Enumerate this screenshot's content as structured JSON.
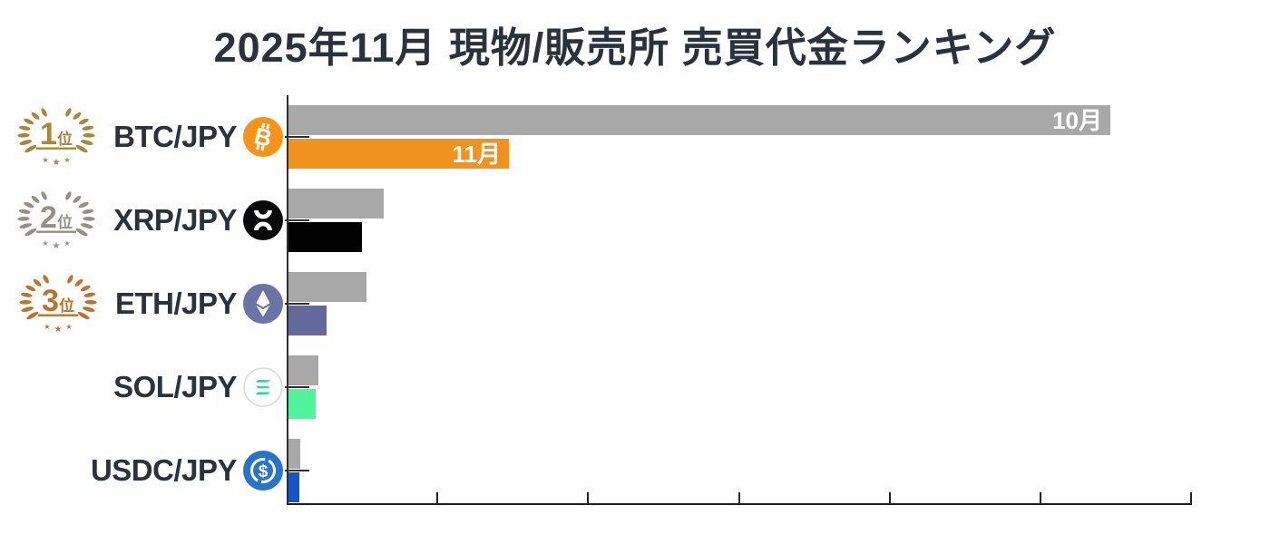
{
  "title": "2025年11月 現物/販売所 売買代金ランキング",
  "chart_data": {
    "type": "bar",
    "orientation": "horizontal",
    "title": "2025年11月 現物/販売所 売買代金ランキング",
    "categories": [
      "BTC/JPY",
      "XRP/JPY",
      "ETH/JPY",
      "SOL/JPY",
      "USDC/JPY"
    ],
    "series": [
      {
        "name": "10月",
        "color": "#A8A8A8",
        "values": [
          5.45,
          0.63,
          0.52,
          0.2,
          0.08
        ]
      },
      {
        "name": "11月",
        "colors": [
          "#F0921E",
          "#000000",
          "#636A9B",
          "#4FF49B",
          "#1456C8"
        ],
        "values": [
          1.46,
          0.49,
          0.25,
          0.18,
          0.07
        ]
      }
    ],
    "xlim": [
      0,
      6
    ],
    "x_tick_count": 6,
    "x_tick_labels_visible": false,
    "x_axis_unit": "unlabeled (1 unit = one tick interval)",
    "value_labels_shown_on_row": 0,
    "legend": "inline bar labels 10月 / 11月 on first row only",
    "grid": false
  },
  "rows": [
    {
      "badge": {
        "rank": "1",
        "suffix": "位",
        "color": "#A8863C",
        "style": "gold-laurel"
      },
      "icon": "btc-icon"
    },
    {
      "badge": {
        "rank": "2",
        "suffix": "位",
        "color": "#978F87",
        "style": "silver-laurel"
      },
      "icon": "xrp-icon"
    },
    {
      "badge": {
        "rank": "3",
        "suffix": "位",
        "color": "#BA742E",
        "style": "bronze-laurel"
      },
      "icon": "eth-icon"
    },
    {
      "badge": null,
      "icon": "sol-icon"
    },
    {
      "badge": null,
      "icon": "usdc-icon"
    }
  ],
  "icon_colors": {
    "btc": "#F7931A",
    "xrp": "#0A0A0A",
    "eth": "#6B74A4",
    "eth_bar_fill": "#FFFFFF",
    "sol_border": "#D9D9D9",
    "sol_gradient_start": "#1DB9A8",
    "sol_gradient_end": "#43F3A0",
    "usdc": "#2775CA"
  },
  "style_colors": {
    "title_text": "#2A323E",
    "axis": "#1F1F1F",
    "october_bar": "#A8A8A8",
    "bar_label_text": "#FFFFFF"
  }
}
